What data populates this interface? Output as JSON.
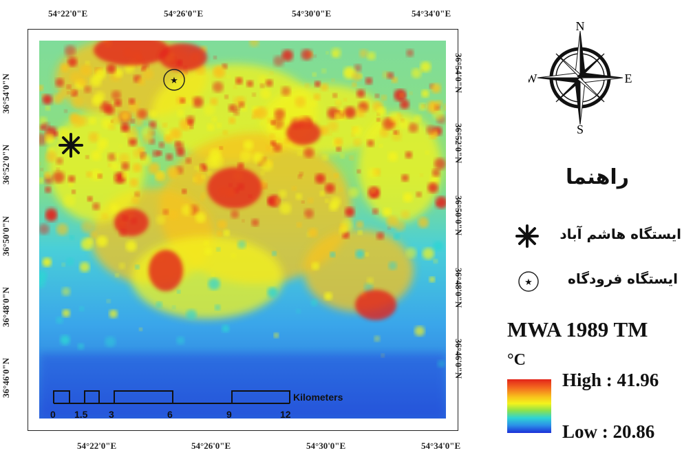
{
  "map": {
    "top_ticks": [
      "54°22'0\"E",
      "54°26'0\"E",
      "54°30'0\"E",
      "54°34'0\"E"
    ],
    "bottom_ticks": [
      "54°22'0\"E",
      "54°26'0\"E",
      "54°30'0\"E",
      "54°34'0\"E"
    ],
    "left_ticks": [
      "36°54'0\"N",
      "36°52'0\"N",
      "36°50'0\"N",
      "36°48'0\"N",
      "36°46'0\"N"
    ],
    "right_ticks": [
      "36°54'0\"N",
      "36°52'0\"N",
      "36°50'0\"N",
      "36°48'0\"N",
      "36°46'0\"N"
    ],
    "scale_bar": {
      "labels": [
        "0",
        "1.5",
        "3",
        "6",
        "9",
        "12"
      ],
      "unit": "Kilometers"
    },
    "colors": {
      "hot": "#e3241a",
      "warm": "#f8c31c",
      "mid": "#f4f31c",
      "cool": "#2fd4d4",
      "cold": "#1b2fd8"
    }
  },
  "compass": {
    "north": "N",
    "south": "S",
    "east": "E",
    "west": "W"
  },
  "legend": {
    "title": "راهنما",
    "items": [
      {
        "icon": "asterisk-icon",
        "label": "ایستگاه هاشم آباد"
      },
      {
        "icon": "circled-star-icon",
        "label": "ایستگاه فرودگاه"
      }
    ],
    "product_title": "MWA 1989 TM",
    "unit": "°C",
    "high_label": "High : 41.96",
    "low_label": "Low : 20.86"
  }
}
